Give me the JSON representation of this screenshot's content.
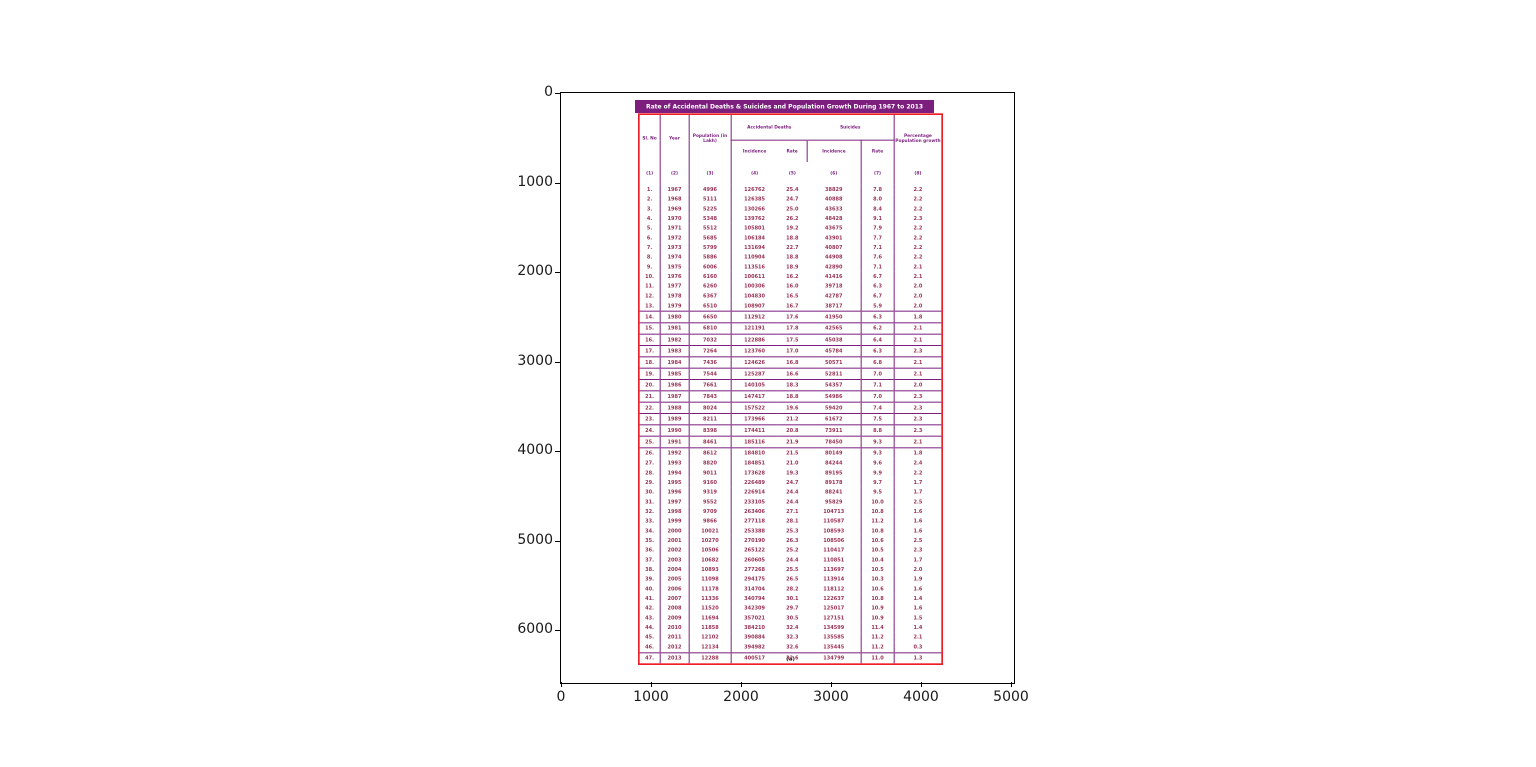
{
  "axes": {
    "x_tick_labels": [
      "0",
      "1000",
      "2000",
      "3000",
      "4000",
      "5000"
    ],
    "y_tick_labels": [
      "0",
      "1000",
      "2000",
      "3000",
      "4000",
      "5000",
      "6000"
    ]
  },
  "colors": {
    "title_bg": "#7b1e7e",
    "title_text": "#ffffff",
    "table_border": "#ee1c25",
    "grid_line": "#7b1e7e",
    "header_text": "#7b1e7e",
    "body_text": "#9a3354"
  },
  "chart_data": {
    "type": "table",
    "title": "Rate of Accidental Deaths & Suicides and Population Growth During 1967 to 2013",
    "caption": "(a)",
    "x_axis_ticks": [
      0,
      1000,
      2000,
      3000,
      4000,
      5000
    ],
    "y_axis_ticks": [
      0,
      1000,
      2000,
      3000,
      4000,
      5000,
      6000
    ],
    "header": {
      "sl_no": "Sl. No",
      "year": "Year",
      "population": "Population (in Lakh)",
      "accidental_deaths": "Accidental Deaths",
      "suicides": "Suicides",
      "incidence": "Incidence",
      "rate": "Rate",
      "pct_growth": "Percentage Population growth",
      "column_numbers": [
        "(1)",
        "(2)",
        "(3)",
        "(4)",
        "(5)",
        "(6)",
        "(7)",
        "(8)"
      ]
    },
    "columns": [
      "Sl. No",
      "Year",
      "Population (in Lakh)",
      "Accidental Deaths Incidence",
      "Accidental Deaths Rate",
      "Suicides Incidence",
      "Suicides Rate",
      "Percentage Population growth"
    ],
    "rows": [
      [
        "1.",
        "1967",
        "4996",
        "126762",
        "25.4",
        "38829",
        "7.8",
        "2.2"
      ],
      [
        "2.",
        "1968",
        "5111",
        "126385",
        "24.7",
        "40888",
        "8.0",
        "2.2"
      ],
      [
        "3.",
        "1969",
        "5225",
        "130266",
        "25.0",
        "43633",
        "8.4",
        "2.2"
      ],
      [
        "4.",
        "1970",
        "5348",
        "139762",
        "26.2",
        "48428",
        "9.1",
        "2.3"
      ],
      [
        "5.",
        "1971",
        "5512",
        "105801",
        "19.2",
        "43675",
        "7.9",
        "2.2"
      ],
      [
        "6.",
        "1972",
        "5685",
        "106184",
        "18.8",
        "43901",
        "7.7",
        "2.2"
      ],
      [
        "7.",
        "1973",
        "5799",
        "131694",
        "22.7",
        "40807",
        "7.1",
        "2.2"
      ],
      [
        "8.",
        "1974",
        "5886",
        "110904",
        "18.8",
        "44908",
        "7.6",
        "2.2"
      ],
      [
        "9.",
        "1975",
        "6006",
        "113516",
        "18.9",
        "42890",
        "7.1",
        "2.1"
      ],
      [
        "10.",
        "1976",
        "6160",
        "100611",
        "16.2",
        "41416",
        "6.7",
        "2.1"
      ],
      [
        "11.",
        "1977",
        "6260",
        "100306",
        "16.0",
        "39718",
        "6.3",
        "2.0"
      ],
      [
        "12.",
        "1978",
        "6367",
        "104830",
        "16.5",
        "42787",
        "6.7",
        "2.0"
      ],
      [
        "13.",
        "1979",
        "6510",
        "108907",
        "16.7",
        "38717",
        "5.9",
        "2.0"
      ],
      [
        "14.",
        "1980",
        "6650",
        "112912",
        "17.6",
        "41950",
        "6.3",
        "1.8"
      ],
      [
        "15.",
        "1981",
        "6810",
        "121191",
        "17.8",
        "42565",
        "6.2",
        "2.1"
      ],
      [
        "16.",
        "1982",
        "7032",
        "122886",
        "17.5",
        "45038",
        "6.4",
        "2.1"
      ],
      [
        "17.",
        "1983",
        "7264",
        "123760",
        "17.0",
        "45784",
        "6.3",
        "2.3"
      ],
      [
        "18.",
        "1984",
        "7436",
        "124626",
        "16.8",
        "50571",
        "6.8",
        "2.1"
      ],
      [
        "19.",
        "1985",
        "7544",
        "125287",
        "16.6",
        "52811",
        "7.0",
        "2.1"
      ],
      [
        "20.",
        "1986",
        "7661",
        "140105",
        "18.3",
        "54357",
        "7.1",
        "2.0"
      ],
      [
        "21.",
        "1987",
        "7843",
        "147417",
        "18.8",
        "54986",
        "7.0",
        "2.3"
      ],
      [
        "22.",
        "1988",
        "8024",
        "157522",
        "19.6",
        "59420",
        "7.4",
        "2.3"
      ],
      [
        "23.",
        "1989",
        "8211",
        "173966",
        "21.2",
        "61672",
        "7.5",
        "2.3"
      ],
      [
        "24.",
        "1990",
        "8398",
        "174411",
        "20.8",
        "73911",
        "8.8",
        "2.3"
      ],
      [
        "25.",
        "1991",
        "8461",
        "185116",
        "21.9",
        "78450",
        "9.3",
        "2.1"
      ],
      [
        "26.",
        "1992",
        "8612",
        "184810",
        "21.5",
        "80149",
        "9.3",
        "1.8"
      ],
      [
        "27.",
        "1993",
        "8820",
        "184851",
        "21.0",
        "84244",
        "9.6",
        "2.4"
      ],
      [
        "28.",
        "1994",
        "9011",
        "173628",
        "19.3",
        "89195",
        "9.9",
        "2.2"
      ],
      [
        "29.",
        "1995",
        "9160",
        "226489",
        "24.7",
        "89178",
        "9.7",
        "1.7"
      ],
      [
        "30.",
        "1996",
        "9319",
        "226914",
        "24.4",
        "88241",
        "9.5",
        "1.7"
      ],
      [
        "31.",
        "1997",
        "9552",
        "233105",
        "24.4",
        "95829",
        "10.0",
        "2.5"
      ],
      [
        "32.",
        "1998",
        "9709",
        "263406",
        "27.1",
        "104713",
        "10.8",
        "1.6"
      ],
      [
        "33.",
        "1999",
        "9866",
        "277118",
        "28.1",
        "110587",
        "11.2",
        "1.6"
      ],
      [
        "34.",
        "2000",
        "10021",
        "253388",
        "25.3",
        "108593",
        "10.8",
        "1.6"
      ],
      [
        "35.",
        "2001",
        "10270",
        "270190",
        "26.3",
        "108506",
        "10.6",
        "2.5"
      ],
      [
        "36.",
        "2002",
        "10506",
        "265122",
        "25.2",
        "110417",
        "10.5",
        "2.3"
      ],
      [
        "37.",
        "2003",
        "10682",
        "260605",
        "24.4",
        "110851",
        "10.4",
        "1.7"
      ],
      [
        "38.",
        "2004",
        "10893",
        "277268",
        "25.5",
        "113697",
        "10.5",
        "2.0"
      ],
      [
        "39.",
        "2005",
        "11098",
        "294175",
        "26.5",
        "113914",
        "10.3",
        "1.9"
      ],
      [
        "40.",
        "2006",
        "11178",
        "314704",
        "28.2",
        "118112",
        "10.6",
        "1.6"
      ],
      [
        "41.",
        "2007",
        "11336",
        "340794",
        "30.1",
        "122637",
        "10.8",
        "1.4"
      ],
      [
        "42.",
        "2008",
        "11520",
        "342309",
        "29.7",
        "125017",
        "10.9",
        "1.6"
      ],
      [
        "43.",
        "2009",
        "11694",
        "357021",
        "30.5",
        "127151",
        "10.9",
        "1.5"
      ],
      [
        "44.",
        "2010",
        "11858",
        "384210",
        "32.4",
        "134599",
        "11.4",
        "1.4"
      ],
      [
        "45.",
        "2011",
        "12102",
        "390884",
        "32.3",
        "135585",
        "11.2",
        "2.1"
      ],
      [
        "46.",
        "2012",
        "12134",
        "394982",
        "32.6",
        "135445",
        "11.2",
        "0.3"
      ],
      [
        "47.",
        "2013",
        "12288",
        "400517",
        "32.6",
        "134799",
        "11.0",
        "1.3"
      ]
    ]
  }
}
